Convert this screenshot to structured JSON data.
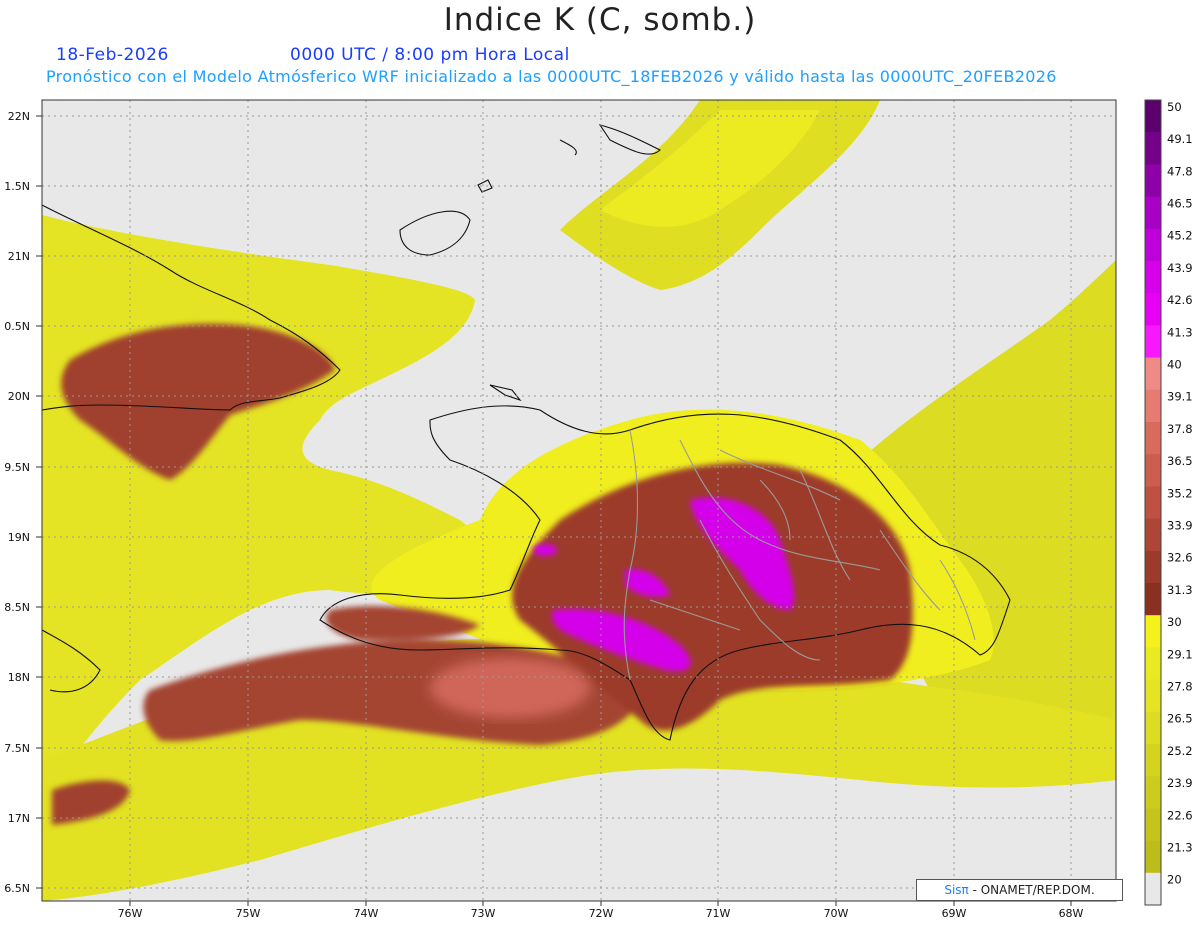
{
  "title": "Indice K (C, somb.)",
  "header": {
    "date": "18-Feb-2026",
    "time": "0000 UTC / 8:00 pm Hora Local",
    "forecast": "Pronóstico con el Modelo Atmósferico WRF inicializado a las 0000UTC_18FEB2026 y válido hasta las  0000UTC_20FEB2026"
  },
  "axes": {
    "lat_labels": [
      "22N",
      "1.5N",
      "21N",
      "0.5N",
      "20N",
      "9.5N",
      "19N",
      "8.5N",
      "18N",
      "7.5N",
      "17N",
      "6.5N"
    ],
    "lon_labels": [
      "76W",
      "75W",
      "74W",
      "73W",
      "72W",
      "71W",
      "70W",
      "69W",
      "68W"
    ]
  },
  "colorbar": {
    "levels": [
      "50",
      "49.1",
      "47.8",
      "46.5",
      "45.2",
      "43.9",
      "42.6",
      "41.3",
      "40",
      "39.1",
      "37.8",
      "36.5",
      "35.2",
      "33.9",
      "32.6",
      "31.3",
      "30",
      "29.1",
      "27.8",
      "26.5",
      "25.2",
      "23.9",
      "22.6",
      "21.3",
      "20"
    ],
    "colors": [
      "#5c006e",
      "#75008a",
      "#8e00a8",
      "#a800c4",
      "#c000dc",
      "#d600ea",
      "#e800f4",
      "#f818ff",
      "#f08a86",
      "#e67b72",
      "#d96b5c",
      "#cc5e4e",
      "#be5142",
      "#ad4636",
      "#9c3b2b",
      "#8a3020",
      "#f4f21a",
      "#eaea20",
      "#e4e424",
      "#dcdc22",
      "#d4d420",
      "#cccc1e",
      "#c4c41c",
      "#bcbc1a",
      "#e8e8e8"
    ]
  },
  "credit": {
    "sis": "Sisπ",
    "rest": " - ONAMET/REP.DOM."
  }
}
